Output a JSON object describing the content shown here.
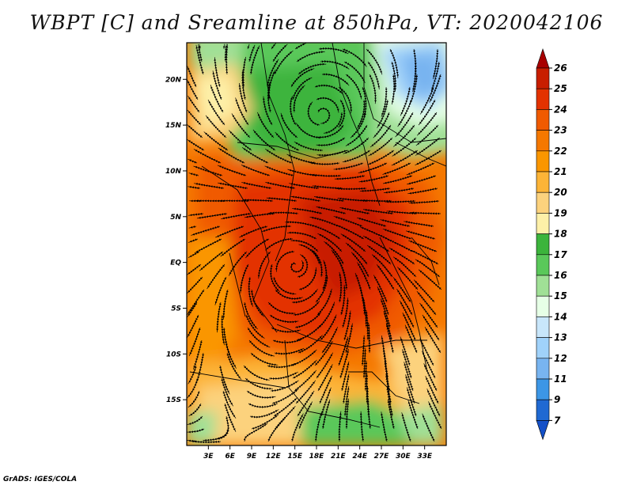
{
  "title": "WBPT [C] and Sreamline at 850hPa, VT: 2020042106",
  "footer": "GrADS: IGES/COLA",
  "map": {
    "lon_range": [
      0,
      36
    ],
    "lat_range": [
      -20,
      24
    ],
    "x_ticks": [
      "3E",
      "6E",
      "9E",
      "12E",
      "15E",
      "18E",
      "21E",
      "24E",
      "27E",
      "30E",
      "33E"
    ],
    "x_tick_values": [
      3,
      6,
      9,
      12,
      15,
      18,
      21,
      24,
      27,
      30,
      33
    ],
    "y_ticks": [
      "20N",
      "15N",
      "10N",
      "5N",
      "EQ",
      "5S",
      "10S",
      "15S"
    ],
    "y_tick_values": [
      20,
      15,
      10,
      5,
      0,
      -5,
      -10,
      -15
    ],
    "field": "Wet-bulb potential temperature at 850hPa with streamlines"
  },
  "colorbar": {
    "labels": [
      "26",
      "25",
      "24",
      "23",
      "22",
      "21",
      "20",
      "19",
      "18",
      "17",
      "16",
      "15",
      "14",
      "13",
      "12",
      "11",
      "9",
      "7"
    ],
    "colors": [
      "#a80000",
      "#c81e00",
      "#e33200",
      "#f05a00",
      "#f57800",
      "#fa9600",
      "#fcb437",
      "#fcd27d",
      "#fdf0a8",
      "#3cb43c",
      "#5ac85a",
      "#a0e096",
      "#e6ffe6",
      "#c8e6fa",
      "#a0d2fa",
      "#78b4f0",
      "#3c96e6",
      "#2069d2",
      "#1450c8"
    ]
  }
}
